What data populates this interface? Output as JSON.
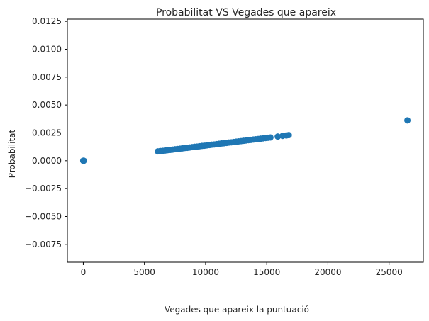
{
  "chart_data": {
    "type": "scatter",
    "title": "Probabilitat VS Vegades que apareix",
    "xlabel": "Vegades que apareix la puntuació",
    "ylabel": "Probabilitat",
    "xlim": [
      -1300,
      27800
    ],
    "ylim": [
      -0.0091,
      0.0127
    ],
    "xticks": [
      0,
      5000,
      10000,
      15000,
      20000,
      25000
    ],
    "xtick_labels": [
      "0",
      "5000",
      "10000",
      "15000",
      "20000",
      "25000"
    ],
    "yticks": [
      -0.0075,
      -0.005,
      -0.0025,
      0.0,
      0.0025,
      0.005,
      0.0075,
      0.01,
      0.0125
    ],
    "ytick_labels": [
      "−0.0075",
      "−0.0050",
      "−0.0025",
      "0.0000",
      "0.0025",
      "0.0050",
      "0.0075",
      "0.0100",
      "0.0125"
    ],
    "grid": false,
    "marker_color": "#1f77b4",
    "series": [
      {
        "points": [
          [
            0,
            0.0
          ],
          [
            10,
            0.0
          ],
          [
            20,
            0.0
          ],
          [
            40,
            0.0
          ],
          [
            6100,
            0.00084
          ],
          [
            6300,
            0.00087
          ],
          [
            6500,
            0.00089
          ],
          [
            6700,
            0.00092
          ],
          [
            6900,
            0.00095
          ],
          [
            7100,
            0.00097
          ],
          [
            7300,
            0.001
          ],
          [
            7500,
            0.00103
          ],
          [
            7700,
            0.00105
          ],
          [
            7900,
            0.00108
          ],
          [
            8100,
            0.00111
          ],
          [
            8300,
            0.00114
          ],
          [
            8500,
            0.00116
          ],
          [
            8700,
            0.00119
          ],
          [
            8900,
            0.00122
          ],
          [
            9100,
            0.00125
          ],
          [
            9300,
            0.00127
          ],
          [
            9500,
            0.0013
          ],
          [
            9700,
            0.00133
          ],
          [
            9900,
            0.00135
          ],
          [
            10100,
            0.00138
          ],
          [
            10300,
            0.00141
          ],
          [
            10500,
            0.00144
          ],
          [
            10700,
            0.00146
          ],
          [
            10900,
            0.00149
          ],
          [
            11100,
            0.00152
          ],
          [
            11300,
            0.00155
          ],
          [
            11500,
            0.00157
          ],
          [
            11700,
            0.0016
          ],
          [
            11900,
            0.00163
          ],
          [
            12100,
            0.00165
          ],
          [
            12300,
            0.00168
          ],
          [
            12500,
            0.00171
          ],
          [
            12700,
            0.00174
          ],
          [
            12900,
            0.00176
          ],
          [
            13100,
            0.00179
          ],
          [
            13300,
            0.00182
          ],
          [
            13500,
            0.00185
          ],
          [
            13700,
            0.00187
          ],
          [
            13900,
            0.0019
          ],
          [
            14100,
            0.00193
          ],
          [
            14300,
            0.00195
          ],
          [
            14500,
            0.00198
          ],
          [
            14700,
            0.00201
          ],
          [
            14900,
            0.00204
          ],
          [
            15100,
            0.00206
          ],
          [
            15300,
            0.00209
          ],
          [
            15900,
            0.00217
          ],
          [
            16300,
            0.00223
          ],
          [
            16600,
            0.00227
          ],
          [
            16800,
            0.0023
          ],
          [
            26500,
            0.00362
          ]
        ]
      }
    ]
  }
}
